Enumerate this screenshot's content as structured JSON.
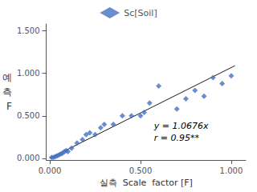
{
  "chart_data": {
    "type": "scatter",
    "x_label": "실측  Scale  factor [F]",
    "y_label": [
      "예",
      "측",
      "F"
    ],
    "annotations": [
      "y = 1.0676x",
      "r = 0.95**"
    ],
    "series": [
      {
        "name": "Sc[Soil]",
        "type": "scatter",
        "color": "#4472C4",
        "marker": "diamond",
        "x": [
          0.01,
          0.02,
          0.03,
          0.04,
          0.05,
          0.06,
          0.07,
          0.08,
          0.09,
          0.1,
          0.12,
          0.15,
          0.18,
          0.2,
          0.22,
          0.25,
          0.28,
          0.3,
          0.35,
          0.4,
          0.45,
          0.5,
          0.52,
          0.55,
          0.6,
          0.7,
          0.75,
          0.8,
          0.85,
          0.9,
          0.95,
          1.0
        ],
        "values": [
          0.01,
          0.01,
          0.02,
          0.03,
          0.04,
          0.05,
          0.06,
          0.08,
          0.09,
          0.08,
          0.12,
          0.18,
          0.22,
          0.28,
          0.3,
          0.28,
          0.36,
          0.4,
          0.4,
          0.5,
          0.5,
          0.5,
          0.54,
          0.65,
          0.85,
          0.58,
          0.7,
          0.8,
          0.73,
          0.95,
          0.88,
          0.97
        ]
      },
      {
        "type": "line",
        "color": "#1a1a1a",
        "line_style": "solid",
        "x": [
          0.0,
          1.02
        ],
        "values": [
          0.0,
          1.088952
        ]
      }
    ],
    "xlim": [
      -0.02,
      1.08
    ],
    "ylim": [
      -0.02,
      1.58
    ],
    "xticks": [
      {
        "value": 0,
        "label": "0.000"
      },
      {
        "value": 0.5,
        "label": "0.500"
      },
      {
        "value": 1.0,
        "label": "1.000"
      }
    ],
    "yticks": [
      {
        "value": 0,
        "label": "0.000"
      },
      {
        "value": 0.5,
        "label": "0.500"
      },
      {
        "value": 1.0,
        "label": "1.000"
      },
      {
        "value": 1.5,
        "label": "1.500"
      }
    ],
    "grid": false,
    "legend": "top"
  }
}
